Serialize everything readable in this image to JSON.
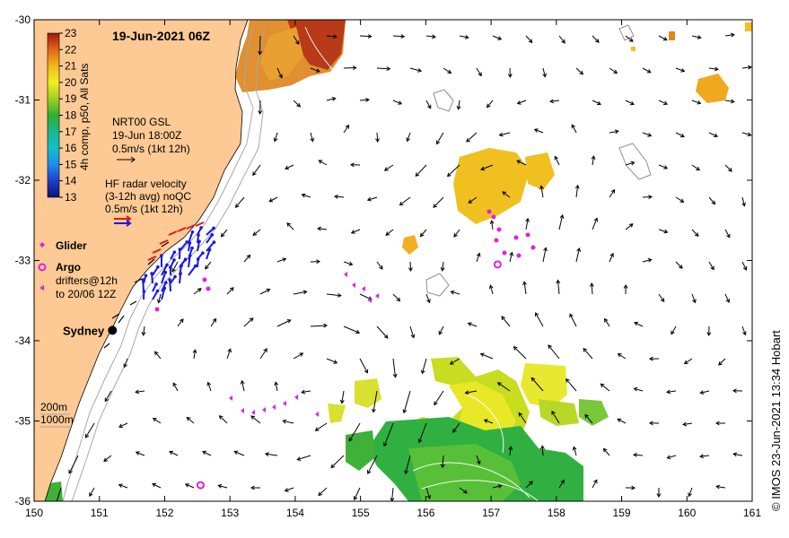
{
  "title": "19-Jun-2021 06Z",
  "credit": "©  IMOS 23-Jun-2021 13:34 Hobart",
  "colors": {
    "land": "#fdc994",
    "ocean": "#ffffff",
    "glider": "#e020e0",
    "argo": "#e020e0",
    "drifters": "#e020e0",
    "radar_primary": "#1818e0",
    "radar_secondary": "#e01818",
    "vectors": "#000000",
    "isobath": "#a8a8a8"
  },
  "axes": {
    "x_ticks": [
      "150",
      "151",
      "152",
      "153",
      "154",
      "155",
      "156",
      "157",
      "158",
      "159",
      "160",
      "161"
    ],
    "y_ticks": [
      "-30",
      "-31",
      "-32",
      "-33",
      "-34",
      "-35",
      "-36"
    ],
    "lon_range": [
      150,
      161
    ],
    "lat_range": [
      -36,
      -30
    ]
  },
  "colorbar": {
    "ticks": [
      "23",
      "22",
      "21",
      "20",
      "19",
      "18",
      "17",
      "16",
      "15",
      "14",
      "13"
    ],
    "range": [
      13,
      23
    ],
    "label": "4h comp, p50, All Sats"
  },
  "legend": {
    "gsl_line1": "NRT00 GSL",
    "gsl_line2": "19-Jun 18:00Z",
    "gsl_line3": "0.5m/s (1kt 12h)",
    "radar_line1": "HF radar velocity",
    "radar_line2": "(3-12h avg) noQC",
    "radar_line3": "0.5m/s (1kt 12h)",
    "glider": "Glider",
    "argo": "Argo",
    "drifters_line1": "drifters@12h",
    "drifters_line2": "to 20/06 12Z",
    "city": "Sydney",
    "isobath_1": "200m",
    "isobath_2": "1000m"
  },
  "map_features": {
    "city_lon": 151.2,
    "city_lat": -33.87,
    "argo_floats": [
      {
        "lon": 157.1,
        "lat": -33.05
      },
      {
        "lon": 152.55,
        "lat": -35.8
      }
    ]
  }
}
